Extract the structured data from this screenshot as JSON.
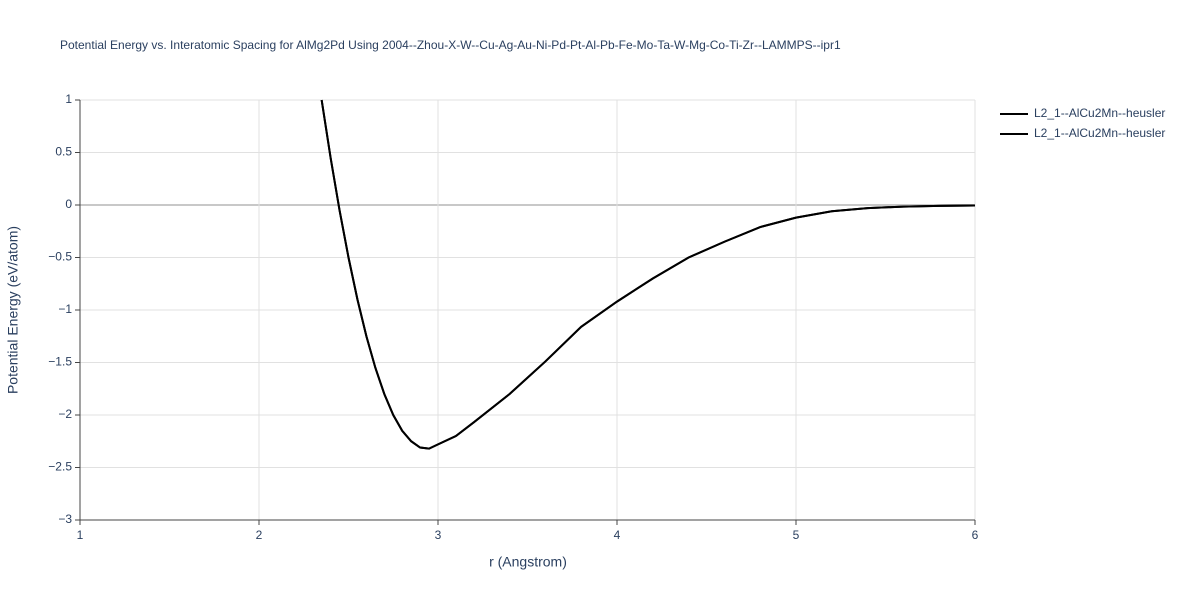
{
  "chart_data": {
    "type": "line",
    "title": "Potential Energy vs. Interatomic Spacing for AlMg2Pd Using 2004--Zhou-X-W--Cu-Ag-Au-Ni-Pd-Pt-Al-Pb-Fe-Mo-Ta-W-Mg-Co-Ti-Zr--LAMMPS--ipr1",
    "x_label": "r (Angstrom)",
    "y_label": "Potential Energy (eV/atom)",
    "x": [
      2.35,
      2.4,
      2.45,
      2.5,
      2.55,
      2.6,
      2.65,
      2.7,
      2.75,
      2.8,
      2.85,
      2.9,
      2.95,
      3.0,
      3.1,
      3.2,
      3.4,
      3.6,
      3.8,
      4.0,
      4.2,
      4.4,
      4.6,
      4.8,
      5.0,
      5.2,
      5.4,
      5.6,
      5.8,
      6.0
    ],
    "series": [
      {
        "name": "L2_1--AlCu2Mn--heusler",
        "color": "#000000",
        "values": [
          1.0,
          0.45,
          -0.05,
          -0.5,
          -0.9,
          -1.25,
          -1.55,
          -1.8,
          -2.0,
          -2.15,
          -2.25,
          -2.31,
          -2.32,
          -2.28,
          -2.2,
          -2.07,
          -1.8,
          -1.49,
          -1.16,
          -0.92,
          -0.7,
          -0.5,
          -0.35,
          -0.21,
          -0.12,
          -0.06,
          -0.03,
          -0.015,
          -0.008,
          -0.005
        ]
      },
      {
        "name": "L2_1--AlCu2Mn--heusler",
        "color": "#000000",
        "values": [
          1.0,
          0.45,
          -0.05,
          -0.5,
          -0.9,
          -1.25,
          -1.55,
          -1.8,
          -2.0,
          -2.15,
          -2.25,
          -2.31,
          -2.32,
          -2.28,
          -2.2,
          -2.07,
          -1.8,
          -1.49,
          -1.16,
          -0.92,
          -0.7,
          -0.5,
          -0.35,
          -0.21,
          -0.12,
          -0.06,
          -0.03,
          -0.015,
          -0.008,
          -0.005
        ]
      }
    ],
    "xlim": [
      1,
      6
    ],
    "ylim": [
      -3,
      1
    ],
    "xticks": [
      1,
      2,
      3,
      4,
      5,
      6
    ],
    "yticks": [
      1,
      0.5,
      0,
      {
        "value": -0.5,
        "label": "−0.5"
      },
      {
        "value": -1,
        "label": "−1"
      },
      {
        "value": -1.5,
        "label": "−1.5"
      },
      {
        "value": -2,
        "label": "−2"
      },
      {
        "value": -2.5,
        "label": "−2.5"
      },
      {
        "value": -3,
        "label": "−3"
      }
    ],
    "grid": true,
    "legend": "top-right"
  }
}
